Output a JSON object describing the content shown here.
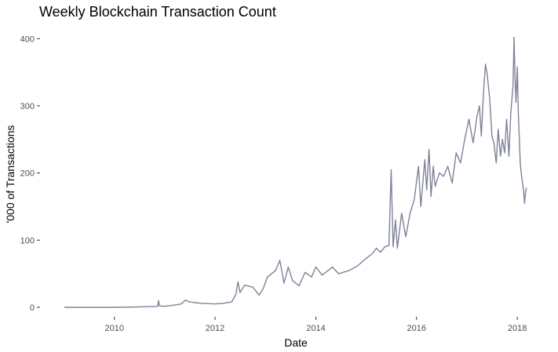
{
  "chart_data": {
    "type": "line",
    "title": "Weekly Blockchain Transaction Count",
    "xlabel": "Date",
    "ylabel": "'000 of Transactions",
    "x_axis_type": "date",
    "xlim": [
      "2009-01-03",
      "2018-03-15"
    ],
    "ylim": [
      0,
      405
    ],
    "x_ticks": [
      "2010",
      "2012",
      "2014",
      "2016",
      "2018"
    ],
    "x_tick_dates": [
      "2010-01-01",
      "2012-01-01",
      "2014-01-01",
      "2016-01-01",
      "2018-01-01"
    ],
    "y_ticks": [
      0,
      100,
      200,
      300,
      400
    ],
    "y_tick_labels": [
      "0",
      "100",
      "200",
      "300",
      "400"
    ],
    "grid": false,
    "legend": "none",
    "series": [
      {
        "color": "#7f8299",
        "points": [
          [
            "2009-01-03",
            0
          ],
          [
            "2009-07-01",
            0
          ],
          [
            "2010-01-01",
            0
          ],
          [
            "2010-06-01",
            0.5
          ],
          [
            "2010-09-01",
            1
          ],
          [
            "2010-11-10",
            1.5
          ],
          [
            "2010-11-17",
            10
          ],
          [
            "2010-11-24",
            2
          ],
          [
            "2011-01-01",
            1.5
          ],
          [
            "2011-03-01",
            3
          ],
          [
            "2011-05-01",
            5
          ],
          [
            "2011-06-01",
            11
          ],
          [
            "2011-06-15",
            9
          ],
          [
            "2011-08-01",
            7
          ],
          [
            "2011-10-01",
            6
          ],
          [
            "2012-01-01",
            5
          ],
          [
            "2012-03-01",
            6
          ],
          [
            "2012-05-01",
            8
          ],
          [
            "2012-06-01",
            20
          ],
          [
            "2012-06-15",
            38
          ],
          [
            "2012-07-01",
            22
          ],
          [
            "2012-08-01",
            33
          ],
          [
            "2012-10-01",
            30
          ],
          [
            "2012-11-15",
            18
          ],
          [
            "2012-12-15",
            28
          ],
          [
            "2013-01-15",
            45
          ],
          [
            "2013-03-15",
            55
          ],
          [
            "2013-04-15",
            70
          ],
          [
            "2013-05-15",
            36
          ],
          [
            "2013-06-15",
            60
          ],
          [
            "2013-07-15",
            40
          ],
          [
            "2013-09-01",
            32
          ],
          [
            "2013-10-15",
            52
          ],
          [
            "2013-12-01",
            45
          ],
          [
            "2014-01-01",
            60
          ],
          [
            "2014-02-15",
            48
          ],
          [
            "2014-04-01",
            55
          ],
          [
            "2014-05-01",
            60
          ],
          [
            "2014-06-15",
            50
          ],
          [
            "2014-09-01",
            55
          ],
          [
            "2014-11-01",
            62
          ],
          [
            "2014-12-15",
            70
          ],
          [
            "2015-01-15",
            75
          ],
          [
            "2015-02-15",
            80
          ],
          [
            "2015-03-15",
            88
          ],
          [
            "2015-04-15",
            82
          ],
          [
            "2015-05-15",
            90
          ],
          [
            "2015-06-15",
            92
          ],
          [
            "2015-07-01",
            205
          ],
          [
            "2015-07-15",
            90
          ],
          [
            "2015-08-01",
            130
          ],
          [
            "2015-08-15",
            88
          ],
          [
            "2015-09-15",
            140
          ],
          [
            "2015-10-15",
            105
          ],
          [
            "2015-11-15",
            140
          ],
          [
            "2015-12-15",
            160
          ],
          [
            "2016-01-15",
            210
          ],
          [
            "2016-02-01",
            150
          ],
          [
            "2016-03-01",
            220
          ],
          [
            "2016-03-15",
            175
          ],
          [
            "2016-04-01",
            235
          ],
          [
            "2016-04-15",
            165
          ],
          [
            "2016-05-01",
            210
          ],
          [
            "2016-05-15",
            180
          ],
          [
            "2016-06-15",
            200
          ],
          [
            "2016-07-15",
            195
          ],
          [
            "2016-08-15",
            210
          ],
          [
            "2016-09-15",
            185
          ],
          [
            "2016-10-15",
            230
          ],
          [
            "2016-11-15",
            215
          ],
          [
            "2016-12-15",
            250
          ],
          [
            "2017-01-15",
            280
          ],
          [
            "2017-02-15",
            245
          ],
          [
            "2017-03-15",
            285
          ],
          [
            "2017-04-01",
            300
          ],
          [
            "2017-04-15",
            255
          ],
          [
            "2017-05-01",
            320
          ],
          [
            "2017-05-15",
            362
          ],
          [
            "2017-05-29",
            345
          ],
          [
            "2017-06-15",
            310
          ],
          [
            "2017-07-01",
            255
          ],
          [
            "2017-07-15",
            245
          ],
          [
            "2017-08-01",
            215
          ],
          [
            "2017-08-15",
            265
          ],
          [
            "2017-09-01",
            225
          ],
          [
            "2017-09-15",
            250
          ],
          [
            "2017-10-01",
            230
          ],
          [
            "2017-10-15",
            280
          ],
          [
            "2017-11-01",
            225
          ],
          [
            "2017-11-15",
            290
          ],
          [
            "2017-12-01",
            330
          ],
          [
            "2017-12-08",
            402
          ],
          [
            "2017-12-15",
            345
          ],
          [
            "2017-12-22",
            305
          ],
          [
            "2018-01-01",
            358
          ],
          [
            "2018-01-08",
            290
          ],
          [
            "2018-01-15",
            255
          ],
          [
            "2018-01-22",
            215
          ],
          [
            "2018-02-01",
            195
          ],
          [
            "2018-02-15",
            175
          ],
          [
            "2018-02-22",
            155
          ],
          [
            "2018-03-01",
            170
          ],
          [
            "2018-03-08",
            178
          ]
        ]
      }
    ]
  }
}
